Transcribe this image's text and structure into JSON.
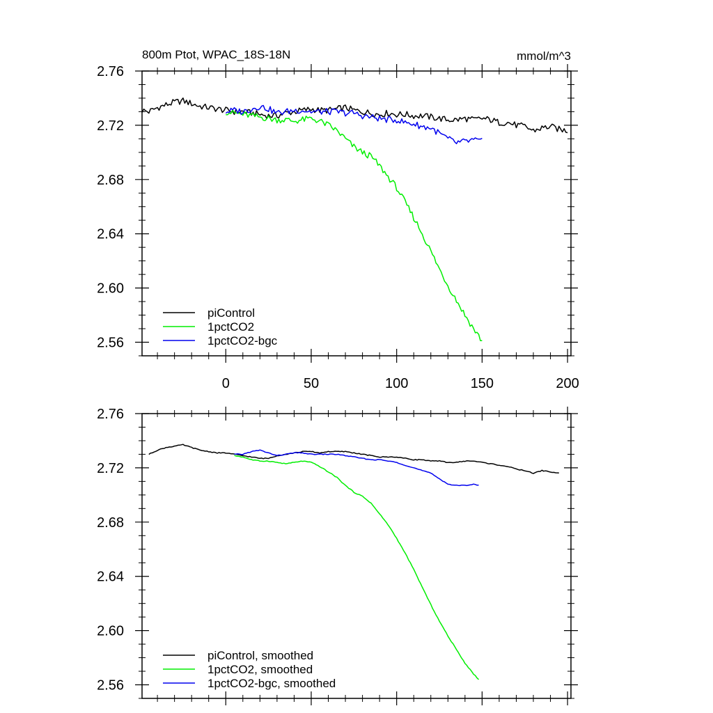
{
  "chart_data": [
    {
      "type": "line",
      "title": "800m Ptot, WPAC_18S-18N",
      "units": "mmol/m^3",
      "xlim": [
        -49,
        202
      ],
      "ylim": [
        2.55,
        2.76
      ],
      "xticks": [
        0,
        50,
        100,
        150,
        200
      ],
      "xtick_labels": [
        "0",
        "50",
        "100",
        "150",
        "200"
      ],
      "show_xtick_labels": true,
      "yticks": [
        2.56,
        2.6,
        2.64,
        2.68,
        2.72,
        2.76
      ],
      "ytick_labels": [
        "2.56",
        "2.60",
        "2.64",
        "2.68",
        "2.72",
        "2.76"
      ],
      "grid": false,
      "legend_position": "bottom-left",
      "series": [
        {
          "name": "piControl",
          "color": "#000000",
          "x": [
            -49,
            -45,
            -40,
            -35,
            -30,
            -25,
            -20,
            -15,
            -10,
            -5,
            0,
            5,
            10,
            15,
            20,
            25,
            30,
            35,
            40,
            45,
            50,
            55,
            60,
            65,
            70,
            75,
            80,
            85,
            90,
            95,
            100,
            105,
            110,
            115,
            120,
            125,
            130,
            135,
            140,
            145,
            150,
            155,
            160,
            165,
            170,
            175,
            180,
            185,
            190,
            195,
            200
          ],
          "y": [
            2.731,
            2.73,
            2.733,
            2.735,
            2.737,
            2.738,
            2.736,
            2.734,
            2.733,
            2.732,
            2.731,
            2.73,
            2.73,
            2.729,
            2.728,
            2.727,
            2.727,
            2.729,
            2.73,
            2.731,
            2.732,
            2.731,
            2.731,
            2.732,
            2.733,
            2.731,
            2.73,
            2.729,
            2.728,
            2.729,
            2.728,
            2.728,
            2.727,
            2.727,
            2.726,
            2.725,
            2.724,
            2.724,
            2.725,
            2.724,
            2.725,
            2.724,
            2.722,
            2.722,
            2.72,
            2.719,
            2.716,
            2.718,
            2.719,
            2.717,
            2.716
          ]
        },
        {
          "name": "1pctCO2",
          "color": "#00ee00",
          "x": [
            0,
            5,
            10,
            15,
            20,
            25,
            30,
            35,
            40,
            45,
            50,
            55,
            60,
            65,
            70,
            75,
            80,
            85,
            90,
            95,
            100,
            105,
            110,
            115,
            120,
            125,
            130,
            135,
            140,
            145,
            150
          ],
          "y": [
            2.73,
            2.729,
            2.728,
            2.727,
            2.726,
            2.725,
            2.724,
            2.724,
            2.723,
            2.724,
            2.725,
            2.723,
            2.72,
            2.716,
            2.71,
            2.704,
            2.7,
            2.697,
            2.69,
            2.682,
            2.674,
            2.663,
            2.652,
            2.64,
            2.627,
            2.614,
            2.602,
            2.591,
            2.58,
            2.57,
            2.561
          ]
        },
        {
          "name": "1pctCO2-bgc",
          "color": "#0000ee",
          "x": [
            0,
            5,
            10,
            15,
            20,
            25,
            30,
            35,
            40,
            45,
            50,
            55,
            60,
            65,
            70,
            75,
            80,
            85,
            90,
            95,
            100,
            105,
            110,
            115,
            120,
            125,
            130,
            135,
            140,
            145,
            150
          ],
          "y": [
            2.73,
            2.731,
            2.73,
            2.732,
            2.734,
            2.732,
            2.729,
            2.73,
            2.731,
            2.731,
            2.73,
            2.73,
            2.73,
            2.73,
            2.729,
            2.729,
            2.727,
            2.726,
            2.725,
            2.724,
            2.724,
            2.722,
            2.721,
            2.719,
            2.718,
            2.714,
            2.71,
            2.707,
            2.708,
            2.709,
            2.708
          ]
        }
      ]
    },
    {
      "type": "line",
      "title": "",
      "units": "",
      "xlim": [
        -49,
        202
      ],
      "ylim": [
        2.55,
        2.76
      ],
      "xticks": [
        0,
        50,
        100,
        150,
        200
      ],
      "xtick_labels": [],
      "show_xtick_labels": false,
      "yticks": [
        2.56,
        2.6,
        2.64,
        2.68,
        2.72,
        2.76
      ],
      "ytick_labels": [
        "2.56",
        "2.60",
        "2.64",
        "2.68",
        "2.72",
        "2.76"
      ],
      "grid": false,
      "legend_position": "bottom-left",
      "series": [
        {
          "name": "piControl, smoothed",
          "color": "#000000",
          "x": [
            -45,
            -40,
            -35,
            -30,
            -25,
            -20,
            -15,
            -10,
            -5,
            0,
            5,
            10,
            15,
            20,
            25,
            30,
            35,
            40,
            45,
            50,
            55,
            60,
            65,
            70,
            75,
            80,
            85,
            90,
            95,
            100,
            105,
            110,
            115,
            120,
            125,
            130,
            135,
            140,
            145,
            150,
            155,
            160,
            165,
            170,
            175,
            180,
            185,
            190,
            195
          ],
          "y": [
            2.73,
            2.733,
            2.735,
            2.736,
            2.737,
            2.735,
            2.733,
            2.732,
            2.731,
            2.731,
            2.73,
            2.729,
            2.728,
            2.727,
            2.727,
            2.729,
            2.73,
            2.731,
            2.732,
            2.732,
            2.731,
            2.732,
            2.732,
            2.732,
            2.731,
            2.73,
            2.729,
            2.728,
            2.728,
            2.728,
            2.727,
            2.726,
            2.726,
            2.725,
            2.725,
            2.724,
            2.724,
            2.725,
            2.725,
            2.724,
            2.723,
            2.722,
            2.721,
            2.719,
            2.718,
            2.716,
            2.718,
            2.717,
            2.716
          ]
        },
        {
          "name": "1pctCO2, smoothed",
          "color": "#00ee00",
          "x": [
            5,
            10,
            15,
            20,
            25,
            30,
            35,
            40,
            45,
            50,
            55,
            60,
            65,
            70,
            75,
            80,
            85,
            90,
            95,
            100,
            105,
            110,
            115,
            120,
            125,
            130,
            135,
            140,
            145,
            148
          ],
          "y": [
            2.729,
            2.728,
            2.726,
            2.725,
            2.725,
            2.724,
            2.723,
            2.724,
            2.725,
            2.724,
            2.721,
            2.717,
            2.713,
            2.707,
            2.702,
            2.699,
            2.694,
            2.686,
            2.678,
            2.668,
            2.657,
            2.645,
            2.632,
            2.619,
            2.607,
            2.596,
            2.586,
            2.576,
            2.568,
            2.564
          ]
        },
        {
          "name": "1pctCO2-bgc, smoothed",
          "color": "#0000ee",
          "x": [
            5,
            10,
            15,
            20,
            25,
            30,
            35,
            40,
            45,
            50,
            55,
            60,
            65,
            70,
            75,
            80,
            85,
            90,
            95,
            100,
            105,
            110,
            115,
            120,
            125,
            130,
            135,
            140,
            145,
            148
          ],
          "y": [
            2.73,
            2.73,
            2.732,
            2.733,
            2.731,
            2.729,
            2.73,
            2.731,
            2.731,
            2.73,
            2.73,
            2.73,
            2.73,
            2.729,
            2.728,
            2.727,
            2.726,
            2.726,
            2.725,
            2.724,
            2.722,
            2.72,
            2.718,
            2.716,
            2.712,
            2.708,
            2.707,
            2.707,
            2.708,
            2.707
          ]
        }
      ]
    }
  ]
}
